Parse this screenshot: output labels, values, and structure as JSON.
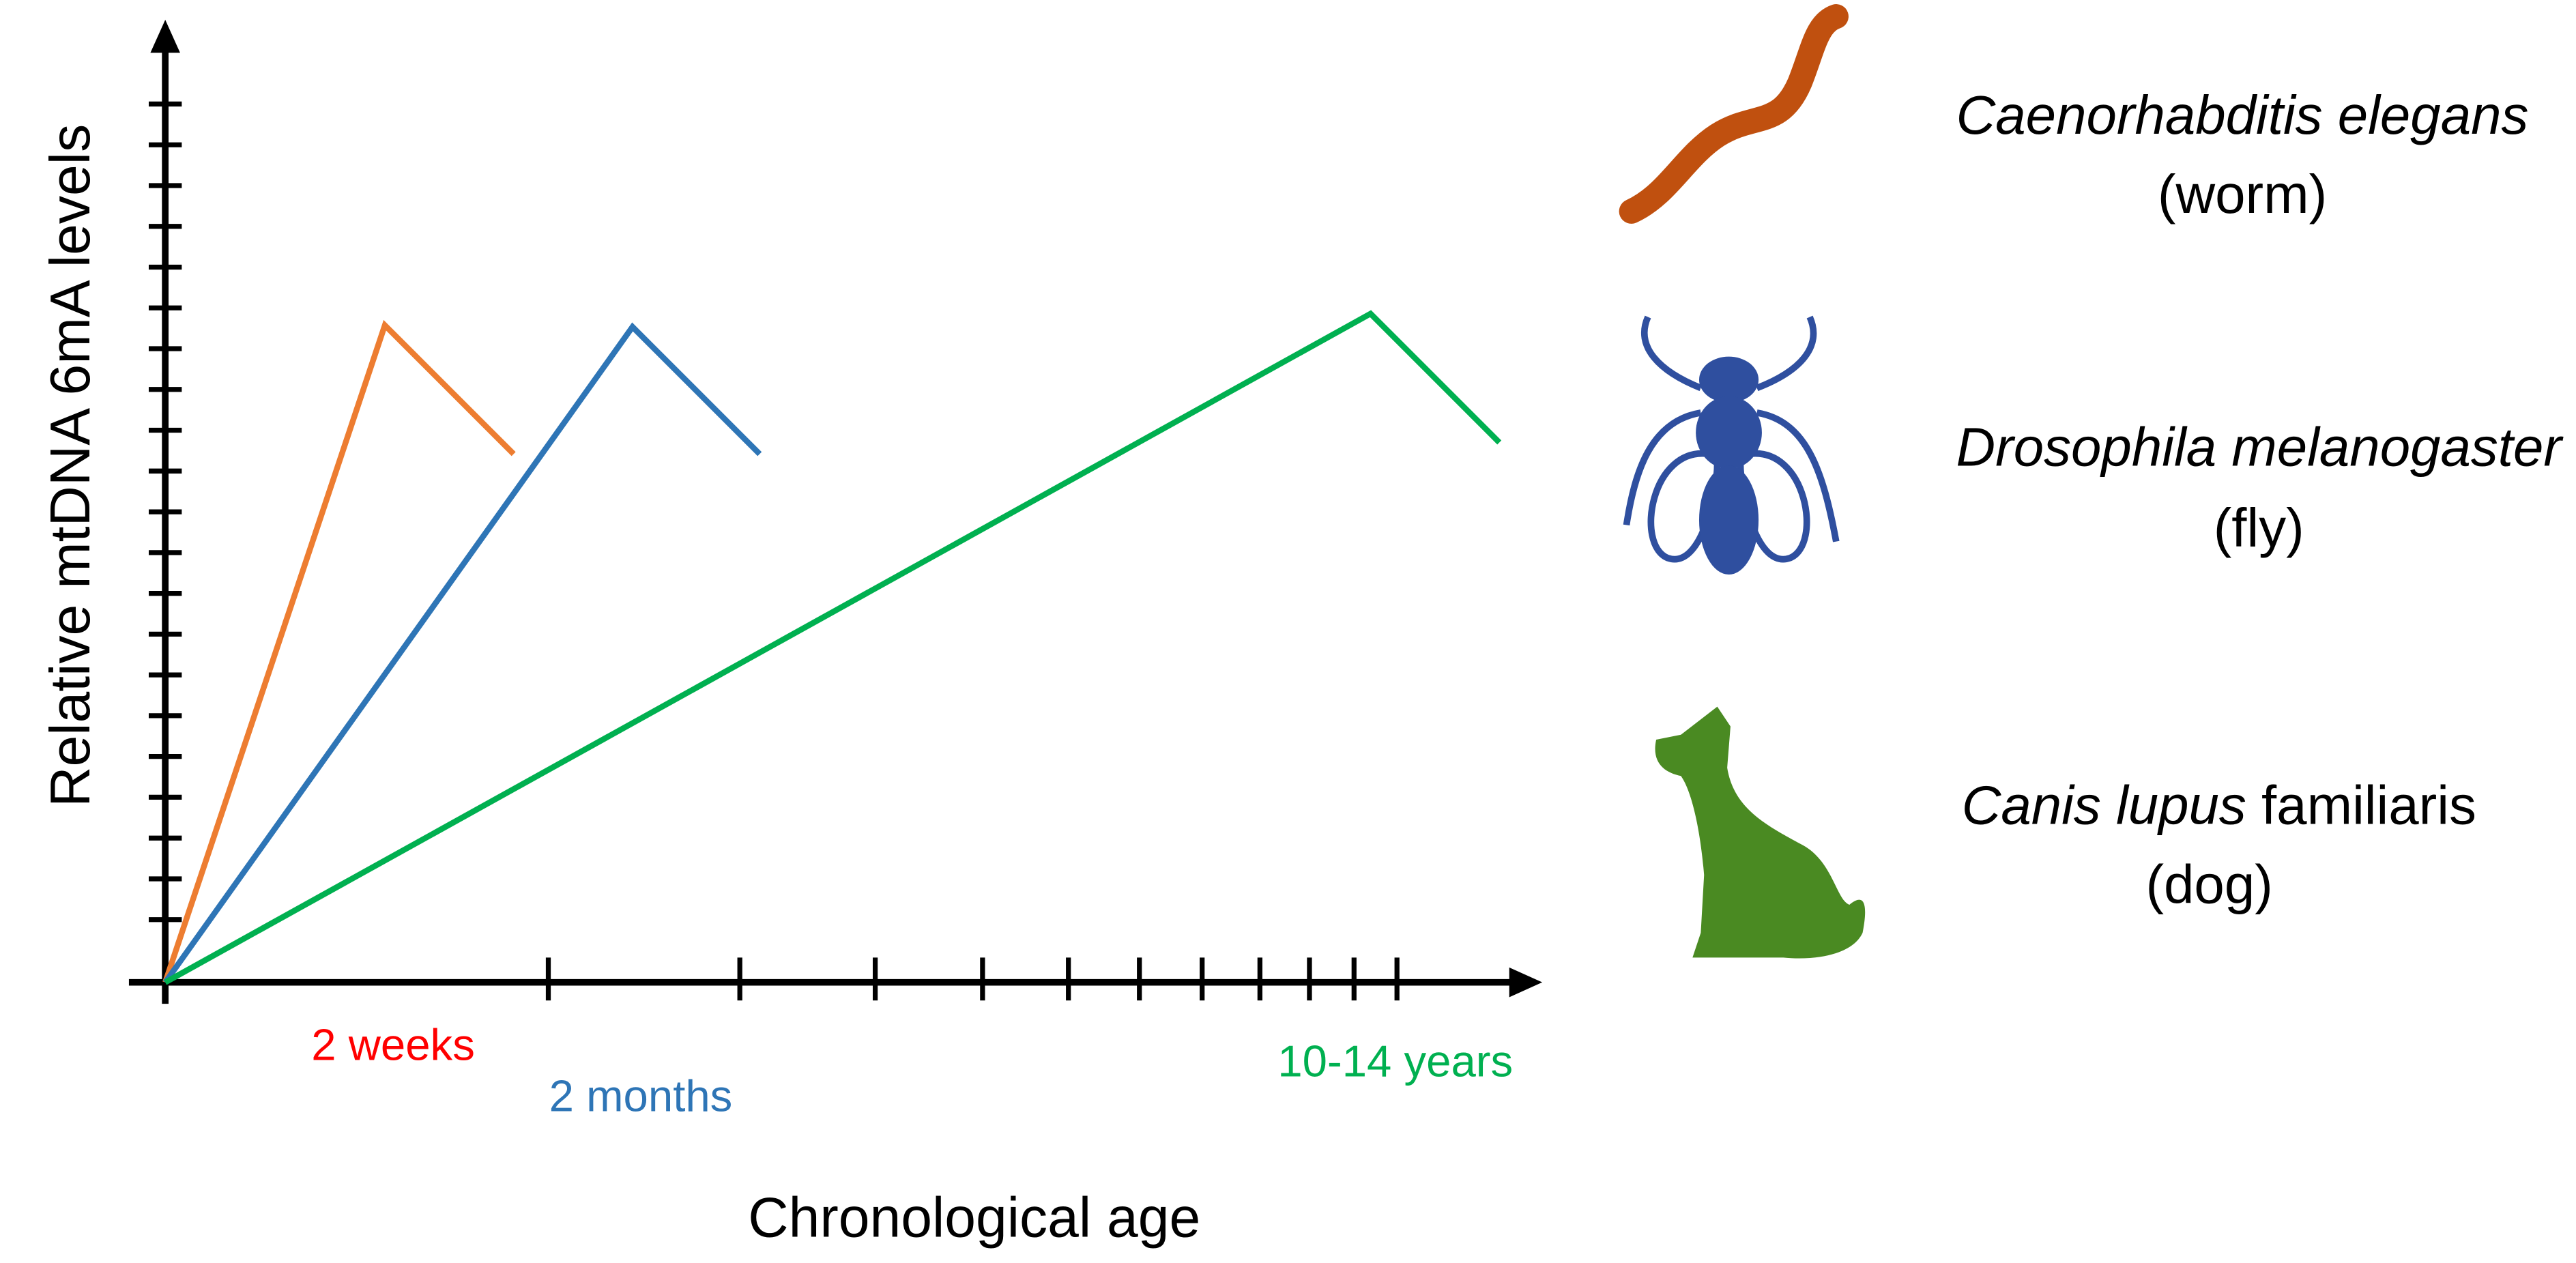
{
  "axes": {
    "y_label": "Relative mtDNA 6mA levels",
    "x_label": "Chronological age"
  },
  "annotations": [
    "2 weeks",
    "2 months",
    "10-14 years"
  ],
  "species": [
    {
      "latin": "Caenorhabditis elegans",
      "common": "(worm)"
    },
    {
      "latin": "Drosophila melanogaster",
      "common": "(fly)"
    },
    {
      "latin_italic": "Canis lupus",
      "latin_plain": "familiaris",
      "common": "(dog)"
    }
  ]
}
